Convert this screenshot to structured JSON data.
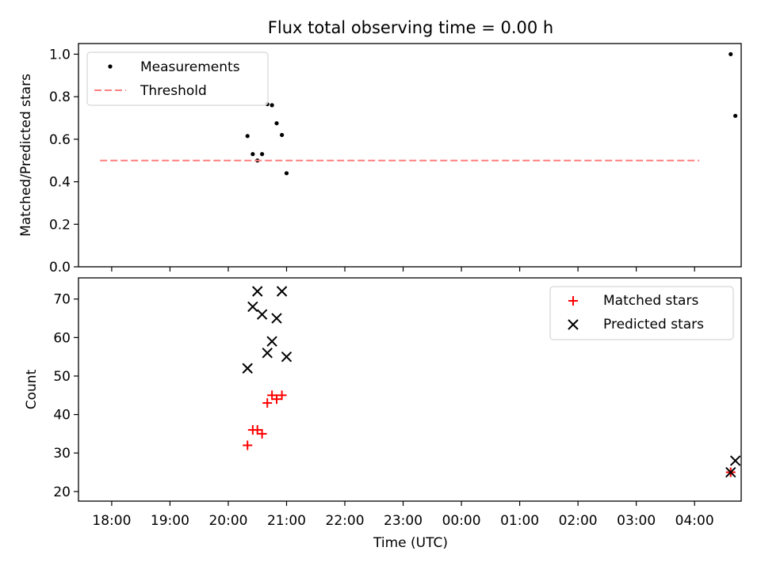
{
  "chart_data": [
    {
      "type": "scatter",
      "title": "Flux total observing time = 0.00 h",
      "xlabel": "",
      "ylabel": "Matched/Predicted stars",
      "xlim": [
        17.43,
        28.8
      ],
      "ylim": [
        0.0,
        1.05
      ],
      "yticks": [
        0.0,
        0.2,
        0.4,
        0.6,
        0.8,
        1.0
      ],
      "ytick_labels": [
        "0.0",
        "0.2",
        "0.4",
        "0.6",
        "0.8",
        "1.0"
      ],
      "legend": {
        "location": "upper left",
        "entries": [
          "Measurements",
          "Threshold"
        ]
      },
      "series": [
        {
          "name": "Measurements",
          "marker": "dot",
          "color": "#000000",
          "points": [
            [
              20.33,
              0.615
            ],
            [
              20.42,
              0.53
            ],
            [
              20.5,
              0.5
            ],
            [
              20.58,
              0.53
            ],
            [
              20.67,
              0.765
            ],
            [
              20.75,
              0.76
            ],
            [
              20.83,
              0.675
            ],
            [
              20.92,
              0.62
            ],
            [
              21.0,
              0.44
            ],
            [
              28.62,
              1.0
            ],
            [
              28.7,
              0.71
            ]
          ]
        },
        {
          "name": "Threshold",
          "style": "dashed",
          "color": "#ff7f7f",
          "x": [
            17.8,
            28.08
          ],
          "y": [
            0.5,
            0.5
          ]
        }
      ]
    },
    {
      "type": "scatter",
      "title": "",
      "xlabel": "Time (UTC)",
      "ylabel": "Count",
      "xlim": [
        17.43,
        28.8
      ],
      "ylim": [
        17.5,
        75.5
      ],
      "yticks": [
        20,
        30,
        40,
        50,
        60,
        70
      ],
      "ytick_labels": [
        "20",
        "30",
        "40",
        "50",
        "60",
        "70"
      ],
      "xticks": [
        18,
        19,
        20,
        21,
        22,
        23,
        24,
        25,
        26,
        27,
        28
      ],
      "xtick_labels": [
        "18:00",
        "19:00",
        "20:00",
        "21:00",
        "22:00",
        "23:00",
        "00:00",
        "01:00",
        "02:00",
        "03:00",
        "04:00"
      ],
      "legend": {
        "location": "upper right",
        "entries": [
          "Matched stars",
          "Predicted stars"
        ]
      },
      "series": [
        {
          "name": "Matched stars",
          "marker": "plus",
          "color": "#ff0000",
          "points": [
            [
              20.33,
              32
            ],
            [
              20.42,
              36
            ],
            [
              20.5,
              36
            ],
            [
              20.58,
              35
            ],
            [
              20.67,
              43
            ],
            [
              20.75,
              45
            ],
            [
              20.83,
              44
            ],
            [
              20.92,
              45
            ],
            [
              28.62,
              25
            ]
          ]
        },
        {
          "name": "Predicted stars",
          "marker": "x",
          "color": "#000000",
          "points": [
            [
              20.33,
              52
            ],
            [
              20.42,
              68
            ],
            [
              20.5,
              72
            ],
            [
              20.58,
              66
            ],
            [
              20.67,
              56
            ],
            [
              20.75,
              59
            ],
            [
              20.83,
              65
            ],
            [
              20.92,
              72
            ],
            [
              21.0,
              55
            ],
            [
              28.62,
              25
            ],
            [
              28.7,
              28
            ]
          ]
        }
      ]
    }
  ]
}
